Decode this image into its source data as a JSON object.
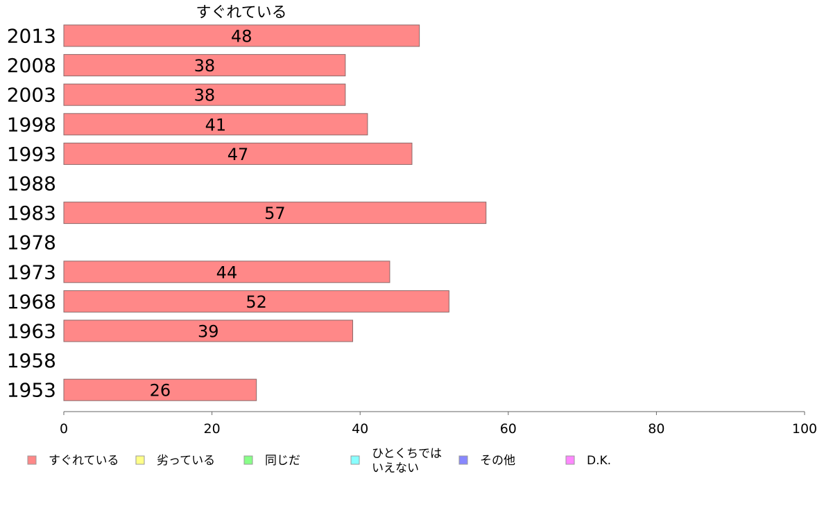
{
  "chart_data": {
    "type": "bar",
    "orientation": "horizontal",
    "title": "すぐれている",
    "categories": [
      "2013",
      "2008",
      "2003",
      "1998",
      "1993",
      "1988",
      "1983",
      "1978",
      "1973",
      "1968",
      "1963",
      "1958",
      "1953"
    ],
    "series": [
      {
        "name": "すぐれている",
        "color": "#ff8888",
        "values": [
          48,
          38,
          38,
          41,
          47,
          null,
          57,
          null,
          44,
          52,
          39,
          null,
          26
        ],
        "labels": [
          "48",
          "38",
          "38",
          "41",
          "47",
          "",
          "57",
          "",
          "44",
          "52",
          "39",
          "",
          "26"
        ]
      }
    ],
    "xlim": [
      0,
      100
    ],
    "xticks": [
      "0",
      "20",
      "40",
      "60",
      "80",
      "100"
    ],
    "grid": false,
    "legend": {
      "placement": "bottom",
      "entries": [
        {
          "label": "すぐれている",
          "color": "#ff8888"
        },
        {
          "label": "劣っている",
          "color": "#ffff88"
        },
        {
          "label": "同じだ",
          "color": "#88ff88"
        },
        {
          "label": "ひとくちでは\nいえない",
          "color": "#88ffff"
        },
        {
          "label": "その他",
          "color": "#8888ff"
        },
        {
          "label": "D.K.",
          "color": "#ff88ff"
        }
      ]
    }
  }
}
